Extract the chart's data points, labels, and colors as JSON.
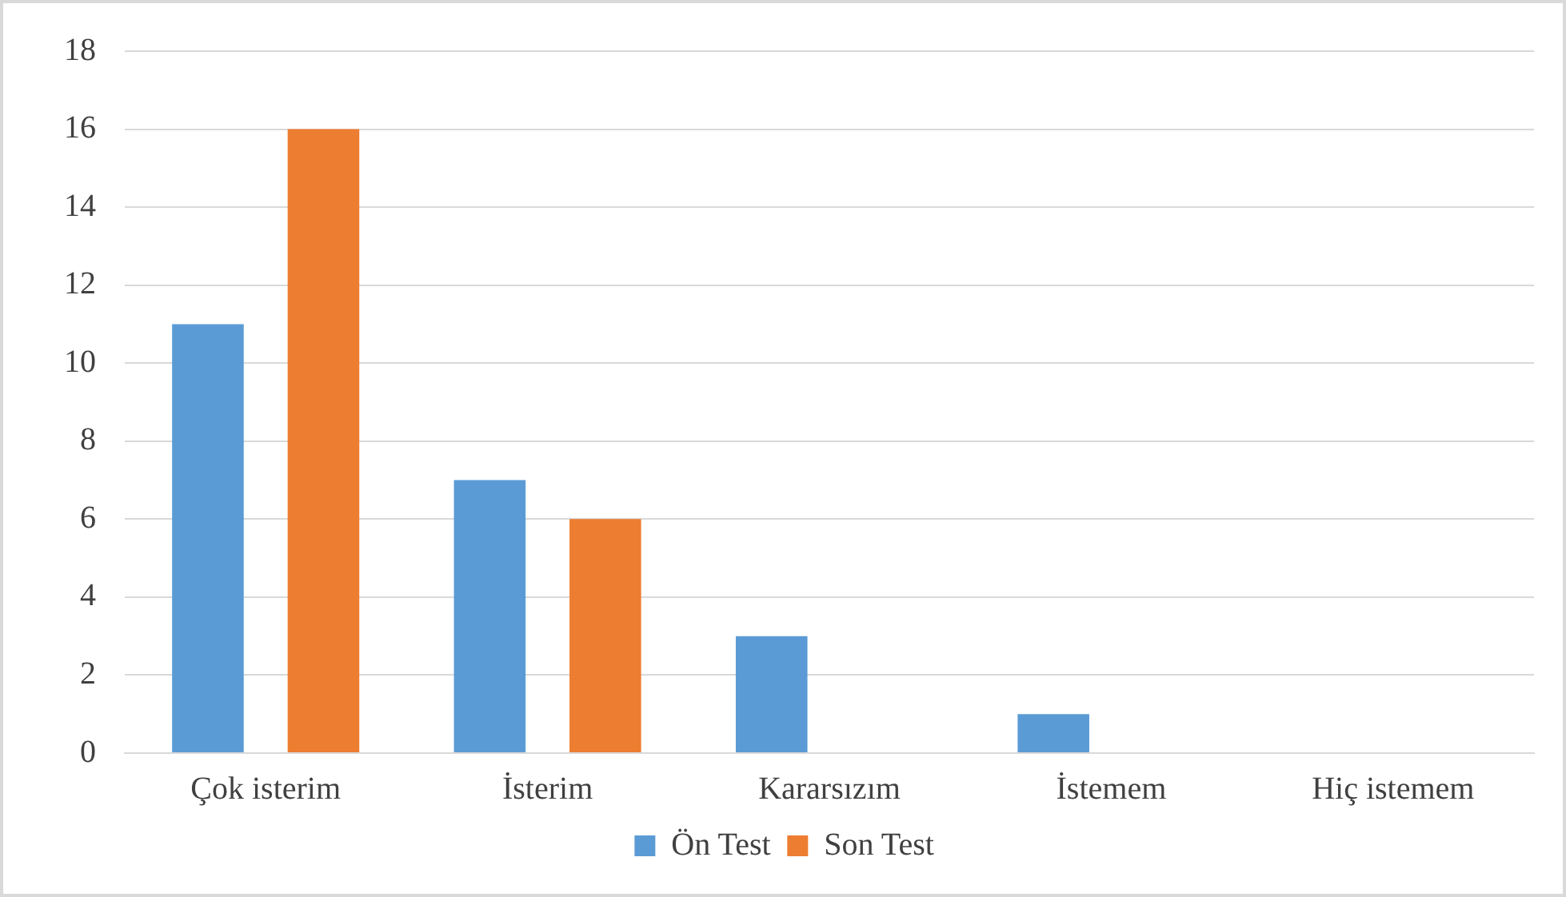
{
  "chart_data": {
    "type": "bar",
    "categories": [
      "Çok isterim",
      "İsterim",
      "Kararsızım",
      "İstemem",
      "Hiç istemem"
    ],
    "series": [
      {
        "name": "Ön Test",
        "color": "#5b9bd5",
        "values": [
          11,
          7,
          3,
          1,
          0
        ]
      },
      {
        "name": "Son Test",
        "color": "#ed7d31",
        "values": [
          16,
          6,
          0,
          0,
          0
        ]
      }
    ],
    "ylim": [
      0,
      18
    ],
    "yticks": [
      0,
      2,
      4,
      6,
      8,
      10,
      12,
      14,
      16,
      18
    ],
    "grid": "y",
    "legend": "bottom"
  }
}
